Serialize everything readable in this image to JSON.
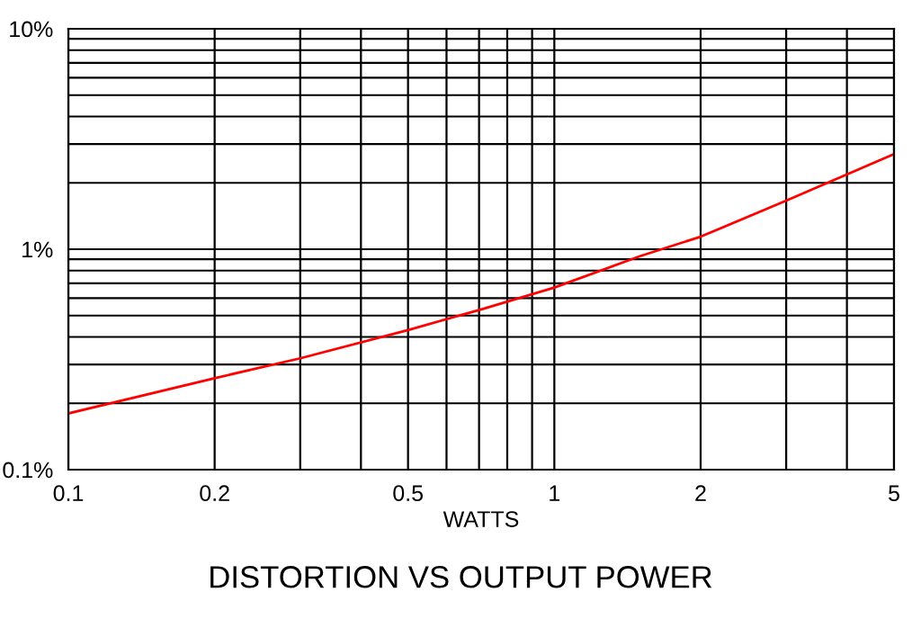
{
  "chart_data": {
    "type": "line",
    "title": "DISTORTION VS OUTPUT POWER",
    "xlabel": "WATTS",
    "log": "xy",
    "grid": true,
    "series": [
      {
        "color": "#ff0000",
        "x": [
          0.1,
          0.2,
          0.3,
          0.5,
          0.7,
          1,
          1.5,
          2,
          3,
          5
        ],
        "values": [
          0.18,
          0.26,
          0.32,
          0.43,
          0.53,
          0.67,
          0.93,
          1.14,
          1.66,
          2.7
        ]
      }
    ],
    "xlim": [
      0.1,
      5
    ],
    "ylim": [
      0.1,
      10
    ],
    "xticks": [
      0.1,
      0.2,
      {
        "value": 0.3,
        "label": null
      },
      {
        "value": 0.4,
        "label": null
      },
      0.5,
      {
        "value": 0.6,
        "label": null
      },
      {
        "value": 0.7,
        "label": null
      },
      {
        "value": 0.8,
        "label": null
      },
      {
        "value": 0.9,
        "label": null
      },
      1,
      2,
      {
        "value": 3,
        "label": null
      },
      {
        "value": 4,
        "label": null
      },
      5
    ],
    "yticks": [
      {
        "value": 0.1,
        "label": "0.1%"
      },
      {
        "value": 0.2,
        "label": null
      },
      {
        "value": 0.3,
        "label": null
      },
      {
        "value": 0.4,
        "label": null
      },
      {
        "value": 0.5,
        "label": null
      },
      {
        "value": 0.6,
        "label": null
      },
      {
        "value": 0.7,
        "label": null
      },
      {
        "value": 0.8,
        "label": null
      },
      {
        "value": 0.9,
        "label": null
      },
      {
        "value": 1,
        "label": "1%"
      },
      {
        "value": 2,
        "label": null
      },
      {
        "value": 3,
        "label": null
      },
      {
        "value": 4,
        "label": null
      },
      {
        "value": 5,
        "label": null
      },
      {
        "value": 6,
        "label": null
      },
      {
        "value": 7,
        "label": null
      },
      {
        "value": 8,
        "label": null
      },
      {
        "value": 9,
        "label": null
      },
      {
        "value": 10,
        "label": "10%"
      }
    ]
  }
}
